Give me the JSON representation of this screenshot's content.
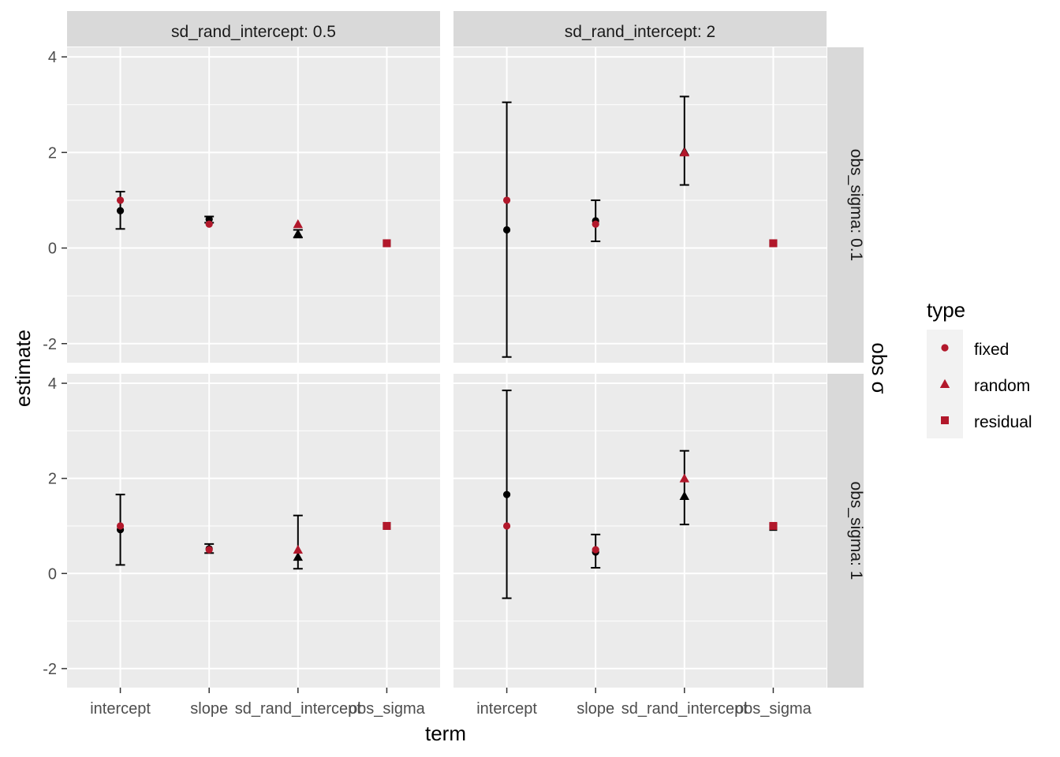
{
  "chart_data": {
    "type": "scatter",
    "facet_cols": {
      "variable": "sd_rand_intercept",
      "labels": [
        "sd_rand_intercept: 0.5",
        "sd_rand_intercept: 2"
      ]
    },
    "facet_rows": {
      "variable": "obs_sigma",
      "labels": [
        "obs_sigma: 0.1",
        "obs_sigma: 1"
      ],
      "title": "obs σ"
    },
    "categories": [
      "intercept",
      "slope",
      "sd_rand_intercept",
      "obs_sigma"
    ],
    "xlabel": "term",
    "ylabel": "estimate",
    "ylim": [
      -2.4,
      4.2
    ],
    "yticks": [
      -2,
      0,
      2,
      4
    ],
    "grid": true,
    "legend": {
      "title": "type",
      "position": "right",
      "entries": [
        {
          "label": "fixed",
          "shape": "circle"
        },
        {
          "label": "random",
          "shape": "triangle"
        },
        {
          "label": "residual",
          "shape": "square"
        }
      ]
    },
    "colors": {
      "truth": "#b2182b",
      "estimate": "#000000",
      "panel_bg": "#ebebeb",
      "strip_bg": "#d9d9d9",
      "grid": "#ffffff"
    },
    "panels": [
      {
        "row": 0,
        "col": 0,
        "true_values": [
          1,
          0.5,
          0.5,
          0.1
        ],
        "estimates": [
          0.78,
          0.6,
          0.3,
          0.1
        ],
        "conf_low": [
          0.4,
          0.53,
          0.22,
          null
        ],
        "conf_high": [
          1.18,
          0.66,
          0.38,
          null
        ]
      },
      {
        "row": 0,
        "col": 1,
        "true_values": [
          1,
          0.5,
          2,
          0.1
        ],
        "estimates": [
          0.38,
          0.57,
          2.02,
          0.1
        ],
        "conf_low": [
          -2.28,
          0.14,
          1.32,
          null
        ],
        "conf_high": [
          3.05,
          1.0,
          3.17,
          null
        ]
      },
      {
        "row": 1,
        "col": 0,
        "true_values": [
          1,
          0.5,
          0.5,
          1
        ],
        "estimates": [
          0.92,
          0.52,
          0.35,
          1.0
        ],
        "conf_low": [
          0.18,
          0.43,
          0.1,
          null
        ],
        "conf_high": [
          1.66,
          0.62,
          1.22,
          null
        ]
      },
      {
        "row": 1,
        "col": 1,
        "true_values": [
          1,
          0.5,
          2,
          1
        ],
        "estimates": [
          1.66,
          0.45,
          1.63,
          0.98
        ],
        "conf_low": [
          -0.52,
          0.12,
          1.03,
          null
        ],
        "conf_high": [
          3.85,
          0.82,
          2.58,
          null
        ]
      }
    ],
    "term_types": [
      "fixed",
      "fixed",
      "random",
      "residual"
    ]
  }
}
